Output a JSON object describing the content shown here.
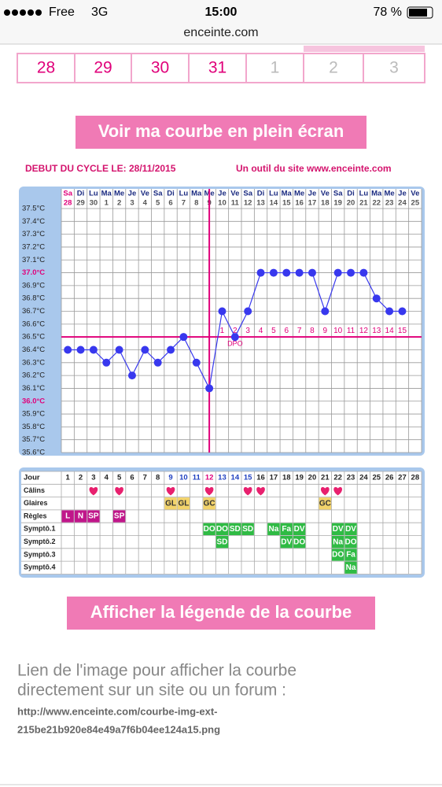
{
  "status_bar": {
    "carrier": "Free",
    "network": "3G",
    "time": "15:00",
    "battery": "78 %"
  },
  "url": "enceinte.com",
  "calendar": {
    "month_days": [
      28,
      29,
      30,
      31
    ],
    "next_month_days": [
      1,
      2,
      3
    ]
  },
  "buttons": {
    "fullscreen": "Voir ma courbe en plein écran",
    "legend": "Afficher la légende de la courbe"
  },
  "chart_header": {
    "left": "DEBUT DU CYCLE LE: 28/11/2015",
    "right": "Un outil du site www.enceinte.com"
  },
  "chart_data": {
    "type": "line",
    "color": "#3838ee",
    "grid": true,
    "weekdays": [
      "Sa",
      "Di",
      "Lu",
      "Ma",
      "Me",
      "Je",
      "Ve",
      "Sa",
      "Di",
      "Lu",
      "Ma",
      "Me",
      "Je",
      "Ve",
      "Sa",
      "Di",
      "Lu",
      "Ma",
      "Me",
      "Je",
      "Ve",
      "Sa",
      "Di",
      "Lu",
      "Ma",
      "Me",
      "Je",
      "Ve"
    ],
    "categories": [
      "28",
      "29",
      "30",
      "1",
      "2",
      "3",
      "4",
      "5",
      "6",
      "7",
      "8",
      "9",
      "10",
      "11",
      "12",
      "13",
      "14",
      "15",
      "16",
      "17",
      "18",
      "19",
      "20",
      "21",
      "22",
      "23",
      "24",
      "25"
    ],
    "values": [
      36.4,
      36.4,
      36.4,
      36.3,
      36.4,
      36.2,
      36.4,
      36.3,
      36.4,
      36.5,
      36.3,
      36.1,
      36.7,
      36.5,
      36.7,
      37.0,
      37.0,
      37.0,
      37.0,
      37.0,
      36.7,
      37.0,
      37.0,
      37.0,
      36.8,
      36.7,
      36.7,
      null
    ],
    "ylim": [
      35.6,
      37.5
    ],
    "yticks": [
      {
        "value": 37.5,
        "label": "37.5°C"
      },
      {
        "value": 37.4,
        "label": "37.4°C"
      },
      {
        "value": 37.3,
        "label": "37.3°C"
      },
      {
        "value": 37.2,
        "label": "37.2°C"
      },
      {
        "value": 37.1,
        "label": "37.1°C"
      },
      {
        "value": 37.0,
        "label": "37.0°C",
        "highlight": true
      },
      {
        "value": 36.9,
        "label": "36.9°C"
      },
      {
        "value": 36.8,
        "label": "36.8°C"
      },
      {
        "value": 36.7,
        "label": "36.7°C"
      },
      {
        "value": 36.6,
        "label": "36.6°C"
      },
      {
        "value": 36.5,
        "label": "36.5°C"
      },
      {
        "value": 36.4,
        "label": "36.4°C"
      },
      {
        "value": 36.3,
        "label": "36.3°C"
      },
      {
        "value": 36.2,
        "label": "36.2°C"
      },
      {
        "value": 36.1,
        "label": "36.1°C"
      },
      {
        "value": 36.0,
        "label": "36.0°C",
        "highlight": true
      },
      {
        "value": 35.9,
        "label": "35.9°C"
      },
      {
        "value": 35.8,
        "label": "35.8°C"
      },
      {
        "value": 35.7,
        "label": "35.7°C"
      },
      {
        "value": 35.6,
        "label": "35.6°C"
      }
    ],
    "coverline": 36.5,
    "dpo": [
      null,
      null,
      null,
      null,
      null,
      null,
      null,
      null,
      null,
      null,
      null,
      null,
      1,
      2,
      3,
      4,
      5,
      6,
      7,
      8,
      9,
      10,
      11,
      12,
      13,
      14,
      15,
      null
    ],
    "dpo_label": "DPO"
  },
  "symptom_table": {
    "header": "Jour",
    "days": [
      1,
      2,
      3,
      4,
      5,
      6,
      7,
      8,
      9,
      10,
      11,
      12,
      13,
      14,
      15,
      16,
      17,
      18,
      19,
      20,
      21,
      22,
      23,
      24,
      25,
      26,
      27,
      28
    ],
    "rows": [
      {
        "label": "Câlins",
        "cells": [
          null,
          null,
          true,
          null,
          true,
          null,
          null,
          null,
          true,
          null,
          null,
          true,
          null,
          null,
          true,
          true,
          null,
          null,
          null,
          null,
          true,
          true,
          null,
          null,
          null,
          null,
          null,
          null
        ]
      },
      {
        "label": "Glaires",
        "color": "#f2d36b",
        "text_color": "#333333",
        "cells": [
          null,
          null,
          null,
          null,
          null,
          null,
          null,
          null,
          "GL",
          "GL",
          null,
          "GC",
          null,
          null,
          null,
          null,
          null,
          null,
          null,
          null,
          "GC",
          null,
          null,
          null,
          null,
          null,
          null,
          null
        ]
      },
      {
        "label": "Règles",
        "color": "#c0168a",
        "text_color": "#ffffff",
        "cells": [
          "L",
          "N",
          "SP",
          null,
          "SP",
          null,
          null,
          null,
          null,
          null,
          null,
          null,
          null,
          null,
          null,
          null,
          null,
          null,
          null,
          null,
          null,
          null,
          null,
          null,
          null,
          null,
          null,
          null
        ]
      },
      {
        "label": "Symptô.1",
        "color": "#2fbb44",
        "text_color": "#ffffff",
        "cells": [
          null,
          null,
          null,
          null,
          null,
          null,
          null,
          null,
          null,
          null,
          null,
          "DO",
          "DO",
          "SD",
          "SD",
          null,
          "Na",
          "Fa",
          "DV",
          null,
          null,
          "DV",
          "DV",
          null,
          null,
          null,
          null,
          null
        ]
      },
      {
        "label": "Symptô.2",
        "color": "#2fbb44",
        "text_color": "#ffffff",
        "cells": [
          null,
          null,
          null,
          null,
          null,
          null,
          null,
          null,
          null,
          null,
          null,
          null,
          "SD",
          null,
          null,
          null,
          null,
          "DV",
          "DO",
          null,
          null,
          "Na",
          "DO",
          null,
          null,
          null,
          null,
          null
        ]
      },
      {
        "label": "Symptô.3",
        "color": "#2fbb44",
        "text_color": "#ffffff",
        "cells": [
          null,
          null,
          null,
          null,
          null,
          null,
          null,
          null,
          null,
          null,
          null,
          null,
          null,
          null,
          null,
          null,
          null,
          null,
          null,
          null,
          null,
          "DO",
          "Fa",
          null,
          null,
          null,
          null,
          null
        ]
      },
      {
        "label": "Symptô.4",
        "color": "#2fbb44",
        "text_color": "#ffffff",
        "cells": [
          null,
          null,
          null,
          null,
          null,
          null,
          null,
          null,
          null,
          null,
          null,
          null,
          null,
          null,
          null,
          null,
          null,
          null,
          null,
          null,
          null,
          null,
          "Na",
          null,
          null,
          null,
          null,
          null
        ]
      }
    ]
  },
  "link": {
    "text_lines": [
      "Lien de l'image pour afficher la courbe",
      "directement sur un site ou un forum :"
    ],
    "url_lines": [
      "http://www.enceinte.com/courbe-img-ext-",
      "215be21b920e84e49a7f6b04ee124a15.png"
    ]
  }
}
